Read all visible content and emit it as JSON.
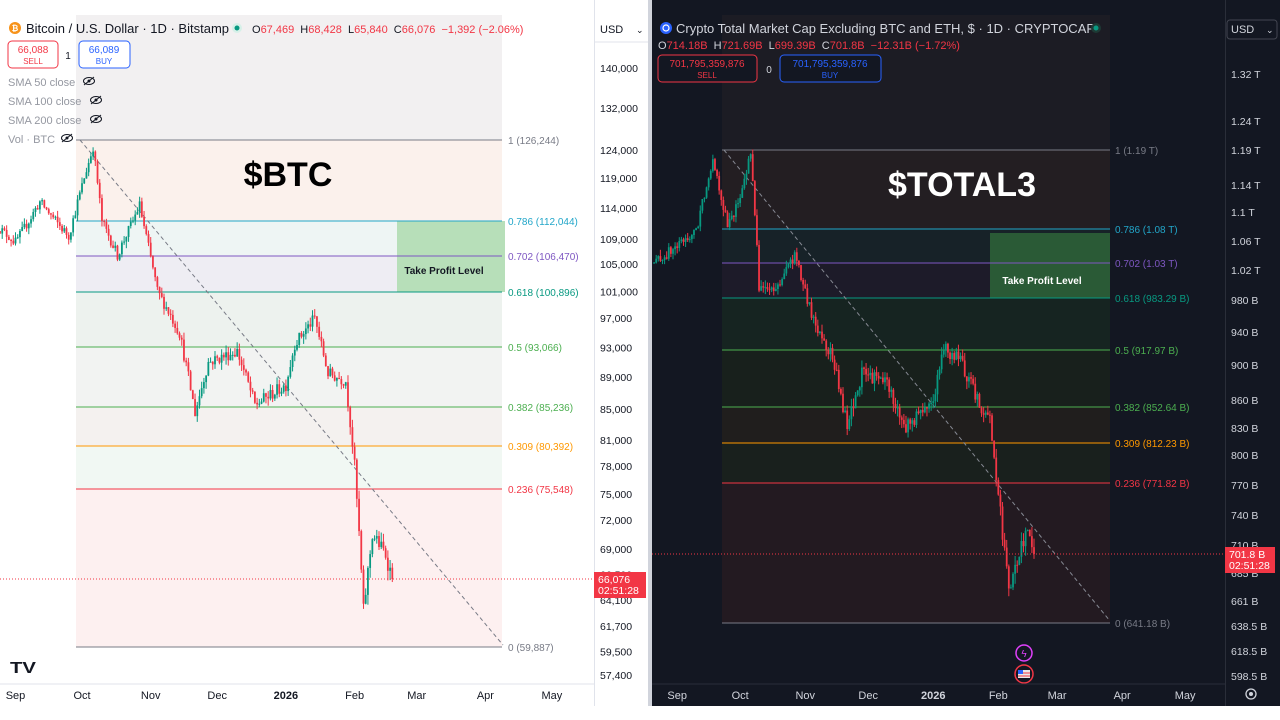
{
  "left": {
    "symbol": "Bitcoin / U.S. Dollar · 1D · Bitstamp",
    "ohlc": {
      "o": "67,469",
      "h": "68,428",
      "l": "65,840",
      "c": "66,076",
      "chg": "−1,392 (−2.06%)"
    },
    "sell_price": "66,088",
    "sell_label": "SELL",
    "spread": "1",
    "buy_price": "66,089",
    "buy_label": "BUY",
    "indicators": [
      "SMA 50 close",
      "SMA 100 close",
      "SMA 200 close",
      "Vol · BTC"
    ],
    "currency": "USD",
    "watermark": "$BTC",
    "take_profit": "Take Profit Level",
    "price_axis": [
      "140,000",
      "132,000",
      "124,000",
      "119,000",
      "114,000",
      "109,000",
      "105,000",
      "101,000",
      "97,000",
      "93,000",
      "89,000",
      "85,000",
      "81,000",
      "78,000",
      "75,000",
      "72,000",
      "69,000",
      "66,500",
      "64,100",
      "61,700",
      "59,500",
      "57,400"
    ],
    "current_price": "66,076",
    "countdown": "02:51:28",
    "months": [
      "Sep",
      "Oct",
      "Nov",
      "Dec",
      "2026",
      "Feb",
      "Mar",
      "Apr",
      "May"
    ],
    "fib": [
      "1 (126,244)",
      "0.786 (112,044)",
      "0.702 (106,470)",
      "0.618 (100,896)",
      "0.5 (93,066)",
      "0.382 (85,236)",
      "0.309 (80,392)",
      "0.236 (75,548)",
      "0 (59,887)"
    ],
    "logo": "TV"
  },
  "right": {
    "symbol": "Crypto Total Market Cap Excluding BTC and ETH, $ · 1D · CRYPTOCAP",
    "ohlc": {
      "o": "714.18B",
      "h": "721.69B",
      "l": "699.39B",
      "c": "701.8B",
      "chg": "−12.31B (−1.72%)"
    },
    "sell_price": "701,795,359,876",
    "sell_label": "SELL",
    "spread": "0",
    "buy_price": "701,795,359,876",
    "buy_label": "BUY",
    "currency": "USD",
    "watermark": "$TOTAL3",
    "take_profit": "Take Profit Level",
    "price_axis": [
      "1.32 T",
      "1.24 T",
      "1.19 T",
      "1.14 T",
      "1.1 T",
      "1.06 T",
      "1.02 T",
      "980 B",
      "940 B",
      "900 B",
      "860 B",
      "830 B",
      "800 B",
      "770 B",
      "740 B",
      "710 B",
      "685 B",
      "661 B",
      "638.5 B",
      "618.5 B",
      "598.5 B"
    ],
    "current_price": "701.8 B",
    "countdown": "02:51:28",
    "months": [
      "Sep",
      "Oct",
      "Nov",
      "Dec",
      "2026",
      "Feb",
      "Mar",
      "Apr",
      "May"
    ],
    "fib": [
      "1 (1.19 T)",
      "0.786 (1.08 T)",
      "0.702 (1.03 T)",
      "0.618 (983.29 B)",
      "0.5 (917.97 B)",
      "0.382 (852.64 B)",
      "0.309 (812.23 B)",
      "0.236 (771.82 B)",
      "0 (641.18 B)"
    ]
  },
  "chart_data": [
    {
      "type": "candlestick",
      "title": "Bitcoin / U.S. Dollar · 1D · Bitstamp",
      "x_range": [
        "2025-08-25",
        "2026-05-20"
      ],
      "y_range": [
        57400,
        140000
      ],
      "fib_levels": [
        1,
        0.786,
        0.702,
        0.618,
        0.5,
        0.382,
        0.309,
        0.236,
        0
      ],
      "fib_values": [
        126244,
        112044,
        106470,
        100896,
        93066,
        85236,
        80392,
        75548,
        59887
      ],
      "fib_colors": [
        "#787b86",
        "#22a6c9",
        "#7e57c2",
        "#089981",
        "#4caf50",
        "#4caf50",
        "#ff9800",
        "#f23645",
        "#787b86"
      ],
      "path": [
        [
          "2025-08-24",
          111000
        ],
        [
          "2025-09-01",
          108500
        ],
        [
          "2025-09-12",
          115000
        ],
        [
          "2025-09-25",
          109500
        ],
        [
          "2025-10-06",
          124500
        ],
        [
          "2025-10-10",
          112000
        ],
        [
          "2025-10-17",
          106500
        ],
        [
          "2025-10-27",
          114500
        ],
        [
          "2025-11-04",
          101000
        ],
        [
          "2025-11-14",
          95000
        ],
        [
          "2025-11-21",
          84500
        ],
        [
          "2025-11-27",
          91000
        ],
        [
          "2025-12-10",
          92500
        ],
        [
          "2025-12-18",
          85500
        ],
        [
          "2026-01-01",
          88000
        ],
        [
          "2026-01-05",
          93500
        ],
        [
          "2026-01-14",
          97000
        ],
        [
          "2026-01-20",
          89500
        ],
        [
          "2026-01-28",
          88500
        ],
        [
          "2026-02-01",
          78000
        ],
        [
          "2026-02-05",
          63000
        ],
        [
          "2026-02-09",
          70500
        ],
        [
          "2026-02-15",
          68500
        ],
        [
          "2026-02-18",
          66076
        ]
      ],
      "current": 66076
    },
    {
      "type": "candlestick",
      "title": "Crypto Total Market Cap Excluding BTC and ETH, $ · 1D · CRYPTOCAP",
      "x_range": [
        "2025-08-20",
        "2026-05-20"
      ],
      "y_range": [
        598.5,
        1350
      ],
      "unit": "B",
      "fib_levels": [
        1,
        0.786,
        0.702,
        0.618,
        0.5,
        0.382,
        0.309,
        0.236,
        0
      ],
      "fib_values": [
        1190,
        1080,
        1030,
        983.29,
        917.97,
        852.64,
        812.23,
        771.82,
        641.18
      ],
      "fib_colors": [
        "#787b86",
        "#22a6c9",
        "#7e57c2",
        "#089981",
        "#4caf50",
        "#4caf50",
        "#ff9800",
        "#f23645",
        "#787b86"
      ],
      "path": [
        [
          "2025-08-21",
          1030
        ],
        [
          "2025-08-31",
          1050
        ],
        [
          "2025-09-10",
          1075
        ],
        [
          "2025-09-18",
          1180
        ],
        [
          "2025-09-25",
          1080
        ],
        [
          "2025-10-02",
          1130
        ],
        [
          "2025-10-06",
          1190
        ],
        [
          "2025-10-10",
          1000
        ],
        [
          "2025-10-17",
          990
        ],
        [
          "2025-10-27",
          1040
        ],
        [
          "2025-11-04",
          960
        ],
        [
          "2025-11-14",
          910
        ],
        [
          "2025-11-21",
          830
        ],
        [
          "2025-11-28",
          890
        ],
        [
          "2025-12-10",
          880
        ],
        [
          "2025-12-18",
          830
        ],
        [
          "2026-01-01",
          860
        ],
        [
          "2026-01-06",
          920
        ],
        [
          "2026-01-14",
          905
        ],
        [
          "2026-01-22",
          860
        ],
        [
          "2026-01-28",
          840
        ],
        [
          "2026-02-01",
          760
        ],
        [
          "2026-02-06",
          665
        ],
        [
          "2026-02-12",
          710
        ],
        [
          "2026-02-16",
          725
        ],
        [
          "2026-02-18",
          701.8
        ]
      ],
      "current": 701.8
    }
  ]
}
